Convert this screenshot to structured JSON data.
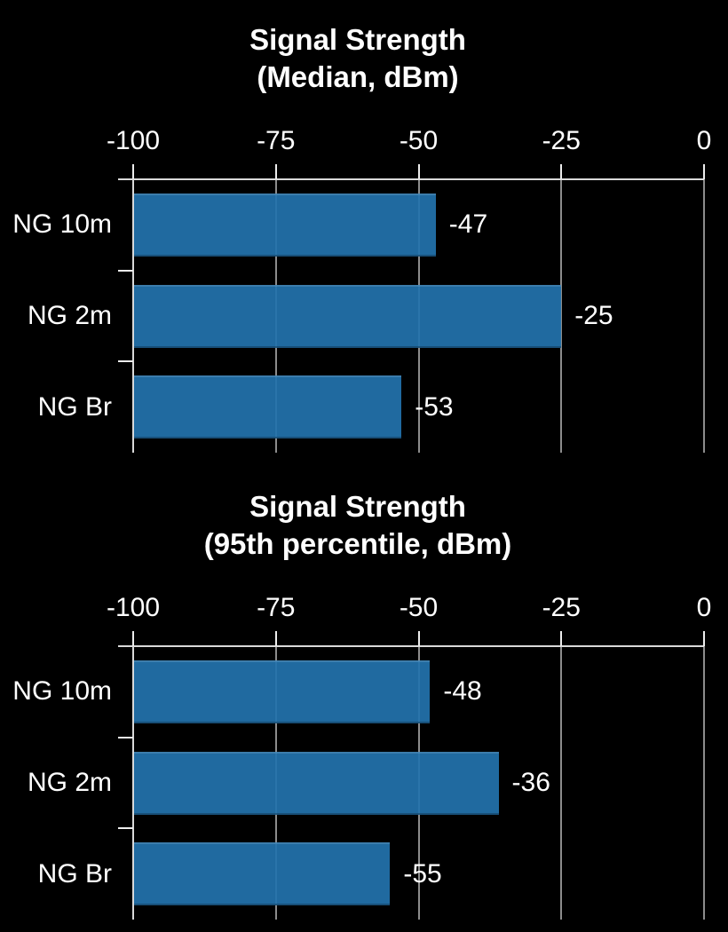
{
  "colors": {
    "background": "#000000",
    "text": "#FFFFFF",
    "bar": "#2069A0",
    "gridline": "#8C8C8C",
    "axis_line": "#D9D9D9",
    "tick": "#EDEDED"
  },
  "chart_data": [
    {
      "type": "bar",
      "orientation": "horizontal",
      "title": "Signal Strength",
      "subtitle": "(Median, dBm)",
      "categories": [
        "NG 10m",
        "NG 2m",
        "NG Br"
      ],
      "values": [
        -47,
        -25,
        -53
      ],
      "data_labels": [
        "-47",
        "-25",
        "-53"
      ],
      "xlim": [
        -100,
        0
      ],
      "xtick_values": [
        -100,
        -75,
        -50,
        -25,
        0
      ],
      "xtick_labels": [
        "-100",
        "-75",
        "-50",
        "-25",
        "0"
      ],
      "bar_baseline": -100,
      "grid": true,
      "legend": false
    },
    {
      "type": "bar",
      "orientation": "horizontal",
      "title": "Signal Strength",
      "subtitle": "(95th percentile, dBm)",
      "categories": [
        "NG 10m",
        "NG 2m",
        "NG Br"
      ],
      "values": [
        -48,
        -36,
        -55
      ],
      "data_labels": [
        "-48",
        "-36",
        "-55"
      ],
      "xlim": [
        -100,
        0
      ],
      "xtick_values": [
        -100,
        -75,
        -50,
        -25,
        0
      ],
      "xtick_labels": [
        "-100",
        "-75",
        "-50",
        "-25",
        "0"
      ],
      "bar_baseline": -100,
      "grid": true,
      "legend": false
    }
  ]
}
